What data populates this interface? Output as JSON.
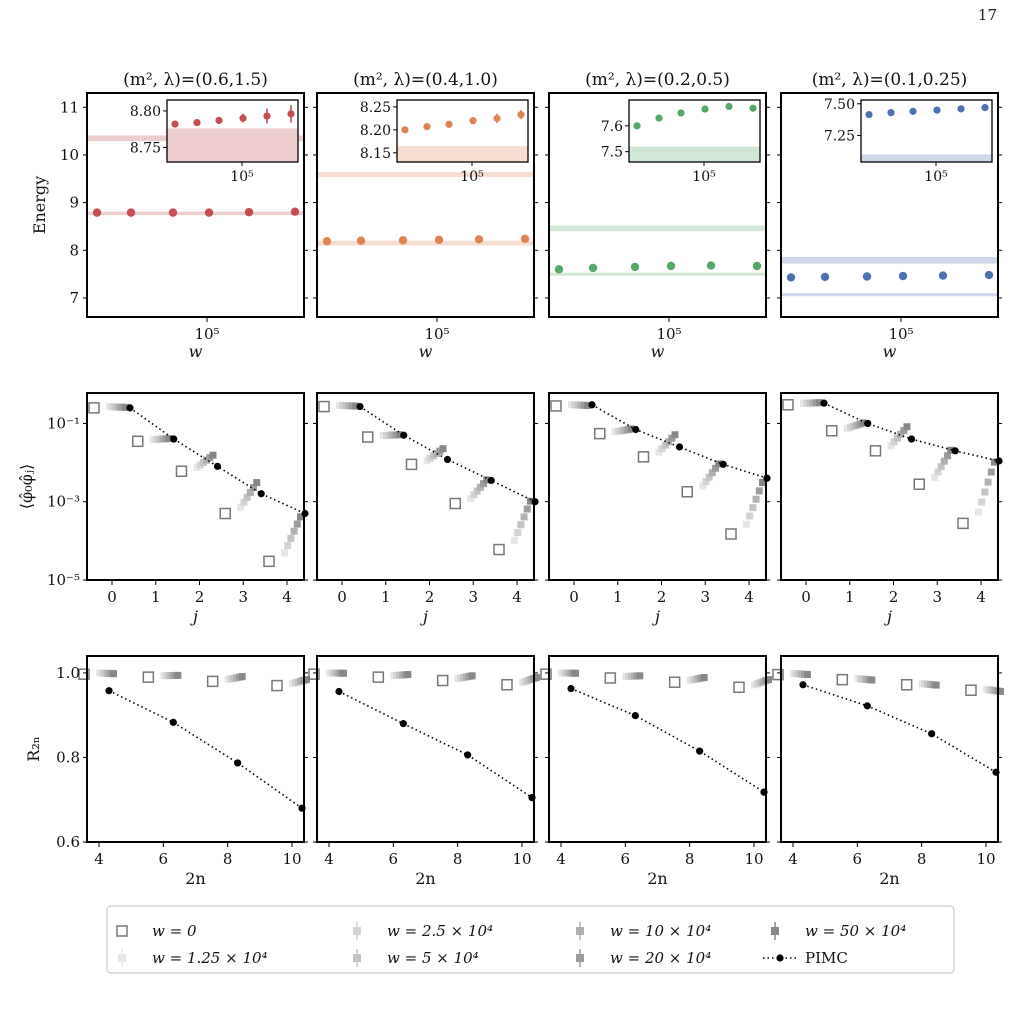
{
  "page_number": "17",
  "colors": {
    "red": "#c44e52",
    "orange": "#dd8452",
    "green": "#55a868",
    "blue": "#4c72b0"
  },
  "chart_data": [
    {
      "type": "scatter",
      "panel": "energy",
      "col": 0,
      "title": "(m², λ)=(0.6,1.5)",
      "xlabel": "w",
      "ylabel": "Energy",
      "xtick_label": "10⁵",
      "ylim": [
        6.6,
        11.3
      ],
      "yticks": [
        7,
        8,
        9,
        10,
        11
      ],
      "color": "red",
      "points": [
        8.79,
        8.79,
        8.79,
        8.79,
        8.8,
        8.81
      ],
      "bands": [
        [
          8.74,
          8.81
        ],
        [
          10.29,
          10.41
        ]
      ],
      "inset": {
        "ylim": [
          8.73,
          8.815
        ],
        "yticks": [
          8.75,
          8.8
        ],
        "ytick_labels": [
          "8.75",
          "8.80"
        ],
        "xtick_label": "10⁵",
        "points": [
          8.782,
          8.784,
          8.787,
          8.79,
          8.793,
          8.796
        ],
        "errs": [
          0.003,
          0.003,
          0.004,
          0.006,
          0.01,
          0.012
        ],
        "band": [
          8.73,
          8.776
        ]
      }
    },
    {
      "type": "scatter",
      "panel": "energy",
      "col": 1,
      "title": "(m², λ)=(0.4,1.0)",
      "xlabel": "w",
      "xtick_label": "10⁵",
      "ylim": [
        6.6,
        11.3
      ],
      "color": "orange",
      "points": [
        8.19,
        8.2,
        8.21,
        8.22,
        8.23,
        8.24
      ],
      "bands": [
        [
          8.1,
          8.2
        ],
        [
          9.54,
          9.64
        ]
      ],
      "inset": {
        "ylim": [
          8.13,
          8.265
        ],
        "yticks": [
          8.15,
          8.2,
          8.25
        ],
        "ytick_labels": [
          "8.15",
          "8.20",
          "8.25"
        ],
        "xtick_label": "10⁵",
        "points": [
          8.2,
          8.207,
          8.212,
          8.22,
          8.225,
          8.233
        ],
        "errs": [
          0.003,
          0.004,
          0.006,
          0.008,
          0.01,
          0.01
        ],
        "band": [
          8.13,
          8.165
        ]
      }
    },
    {
      "type": "scatter",
      "panel": "energy",
      "col": 2,
      "title": "(m², λ)=(0.2,0.5)",
      "xlabel": "w",
      "xtick_label": "10⁵",
      "ylim": [
        6.6,
        11.3
      ],
      "color": "green",
      "points": [
        7.6,
        7.63,
        7.65,
        7.67,
        7.68,
        7.67
      ],
      "bands": [
        [
          7.47,
          7.53
        ],
        [
          8.4,
          8.52
        ]
      ],
      "inset": {
        "ylim": [
          7.46,
          7.7
        ],
        "yticks": [
          7.5,
          7.6
        ],
        "ytick_labels": [
          "7.5",
          "7.6"
        ],
        "xtick_label": "10⁵",
        "points": [
          7.6,
          7.63,
          7.65,
          7.665,
          7.675,
          7.668
        ],
        "errs": [
          0.003,
          0.004,
          0.005,
          0.006,
          0.008,
          0.008
        ],
        "band": [
          7.46,
          7.52
        ]
      }
    },
    {
      "type": "scatter",
      "panel": "energy",
      "col": 3,
      "title": "(m², λ)=(0.1,0.25)",
      "xlabel": "w",
      "xtick_label": "10⁵",
      "ylim": [
        6.6,
        11.3
      ],
      "color": "blue",
      "points": [
        7.43,
        7.44,
        7.45,
        7.46,
        7.47,
        7.48
      ],
      "bands": [
        [
          7.04,
          7.1
        ],
        [
          7.72,
          7.86
        ]
      ],
      "inset": {
        "ylim": [
          7.04,
          7.53
        ],
        "yticks": [
          7.25,
          7.5
        ],
        "ytick_labels": [
          "7.25",
          "7.50"
        ],
        "xtick_label": "10⁵",
        "points": [
          7.415,
          7.43,
          7.44,
          7.45,
          7.46,
          7.47
        ],
        "errs": [
          0.003,
          0.003,
          0.003,
          0.004,
          0.004,
          0.004
        ],
        "band": [
          7.04,
          7.1
        ]
      }
    },
    {
      "type": "scatter",
      "panel": "correlator",
      "col": 0,
      "xlabel": "j",
      "ylabel": "⟨φ̂₀φ̂ⱼ⟩",
      "yscale": "log",
      "xticks": [
        0,
        1,
        2,
        3,
        4
      ],
      "yticks": [
        "10⁻¹",
        "10⁻³",
        "10⁻⁵"
      ],
      "w0": [
        0.25,
        0.035,
        0.006,
        0.0005,
        3e-05
      ],
      "wlast": [
        0.25,
        0.04,
        0.015,
        0.003,
        0.0004
      ],
      "pimc": [
        0.25,
        0.04,
        0.008,
        0.0016,
        0.0005
      ]
    },
    {
      "type": "scatter",
      "panel": "correlator",
      "col": 1,
      "xlabel": "j",
      "yscale": "log",
      "xticks": [
        0,
        1,
        2,
        3,
        4
      ],
      "w0": [
        0.27,
        0.045,
        0.009,
        0.0009,
        6e-05
      ],
      "wlast": [
        0.27,
        0.05,
        0.022,
        0.0035,
        0.001
      ],
      "pimc": [
        0.27,
        0.05,
        0.012,
        0.0035,
        0.001
      ]
    },
    {
      "type": "scatter",
      "panel": "correlator",
      "col": 2,
      "xlabel": "j",
      "yscale": "log",
      "xticks": [
        0,
        1,
        2,
        3,
        4
      ],
      "w0": [
        0.28,
        0.055,
        0.014,
        0.0018,
        0.00015
      ],
      "wlast": [
        0.28,
        0.07,
        0.05,
        0.009,
        0.003
      ],
      "pimc": [
        0.3,
        0.07,
        0.025,
        0.009,
        0.004
      ]
    },
    {
      "type": "scatter",
      "panel": "correlator",
      "col": 3,
      "xlabel": "j",
      "yscale": "log",
      "xticks": [
        0,
        1,
        2,
        3,
        4
      ],
      "w0": [
        0.3,
        0.065,
        0.02,
        0.0028,
        0.00028
      ],
      "wlast": [
        0.33,
        0.1,
        0.08,
        0.02,
        0.01
      ],
      "pimc": [
        0.33,
        0.1,
        0.04,
        0.02,
        0.011
      ]
    },
    {
      "type": "scatter",
      "panel": "ratio",
      "col": 0,
      "xlabel": "2n",
      "ylabel": "R₂ₙ",
      "ylim": [
        0.6,
        1.04
      ],
      "yticks": [
        0.6,
        0.8,
        1.0
      ],
      "ytick_labels": [
        "0.6",
        "0.8",
        "1.0"
      ],
      "x": [
        4,
        6,
        8,
        10
      ],
      "xticks": [
        4,
        6,
        8,
        10
      ],
      "w0": [
        0.997,
        0.99,
        0.98,
        0.97
      ],
      "wlast": [
        0.997,
        0.993,
        0.99,
        0.983
      ],
      "pimc": [
        0.958,
        0.883,
        0.787,
        0.68
      ]
    },
    {
      "type": "scatter",
      "panel": "ratio",
      "col": 1,
      "xlabel": "2n",
      "ylim": [
        0.6,
        1.04
      ],
      "x": [
        4,
        6,
        8,
        10
      ],
      "xticks": [
        4,
        6,
        8,
        10
      ],
      "w0": [
        0.997,
        0.99,
        0.982,
        0.972
      ],
      "wlast": [
        0.998,
        0.995,
        0.992,
        0.988
      ],
      "pimc": [
        0.956,
        0.88,
        0.806,
        0.705
      ]
    },
    {
      "type": "scatter",
      "panel": "ratio",
      "col": 2,
      "xlabel": "2n",
      "ylim": [
        0.6,
        1.04
      ],
      "x": [
        4,
        6,
        8,
        10
      ],
      "xticks": [
        4,
        6,
        8,
        10
      ],
      "w0": [
        0.997,
        0.988,
        0.978,
        0.966
      ],
      "wlast": [
        0.998,
        0.992,
        0.988,
        0.983
      ],
      "pimc": [
        0.963,
        0.899,
        0.815,
        0.718
      ]
    },
    {
      "type": "scatter",
      "panel": "ratio",
      "col": 3,
      "xlabel": "2n",
      "ylim": [
        0.6,
        1.04
      ],
      "x": [
        4,
        6,
        8,
        10
      ],
      "xticks": [
        4,
        6,
        8,
        10
      ],
      "w0": [
        0.996,
        0.984,
        0.972,
        0.959
      ],
      "wlast": [
        0.995,
        0.982,
        0.97,
        0.955
      ],
      "pimc": [
        0.972,
        0.922,
        0.856,
        0.765
      ]
    }
  ],
  "legend": {
    "entries": [
      {
        "label": "w = 0",
        "marker": "open-square"
      },
      {
        "label": "w = 1.25 × 10⁴",
        "marker": "square",
        "shade": "#e6e6e6"
      },
      {
        "label": "w = 2.5 × 10⁴",
        "marker": "square",
        "shade": "#d4d4d4"
      },
      {
        "label": "w = 5 × 10⁴",
        "marker": "square",
        "shade": "#c4c4c4"
      },
      {
        "label": "w = 10 × 10⁴",
        "marker": "square",
        "shade": "#b0b0b0"
      },
      {
        "label": "w = 20 × 10⁴",
        "marker": "square",
        "shade": "#9c9c9c"
      },
      {
        "label": "w = 50 × 10⁴",
        "marker": "square",
        "shade": "#888888"
      },
      {
        "label": "PIMC",
        "marker": "dot-dotted-line"
      }
    ]
  }
}
